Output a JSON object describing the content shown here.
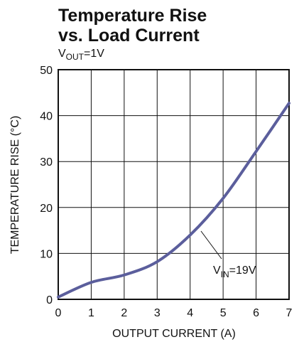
{
  "chart_data": {
    "type": "line",
    "title": [
      "Temperature Rise",
      "vs. Load Current"
    ],
    "subtitle": {
      "base": "V",
      "sub": "OUT",
      "rest": "=1V"
    },
    "x_label": "OUTPUT CURRENT (A)",
    "y_label": "TEMPERATURE RISE (°C)",
    "x": [
      0,
      1,
      2,
      3,
      4,
      5,
      6,
      7
    ],
    "series": [
      {
        "name": {
          "base": "V",
          "sub": "IN",
          "rest": "=19V"
        },
        "color": "#5b5e9c",
        "values": [
          0.5,
          3.7,
          5.3,
          8.2,
          14,
          22,
          32.2,
          42.7
        ]
      }
    ],
    "xlim": [
      0,
      7
    ],
    "xticks": [
      0,
      1,
      2,
      3,
      4,
      5,
      6,
      7
    ],
    "ylim": [
      0,
      50
    ],
    "yticks": [
      0,
      10,
      20,
      30,
      40,
      50
    ],
    "grid": true
  }
}
